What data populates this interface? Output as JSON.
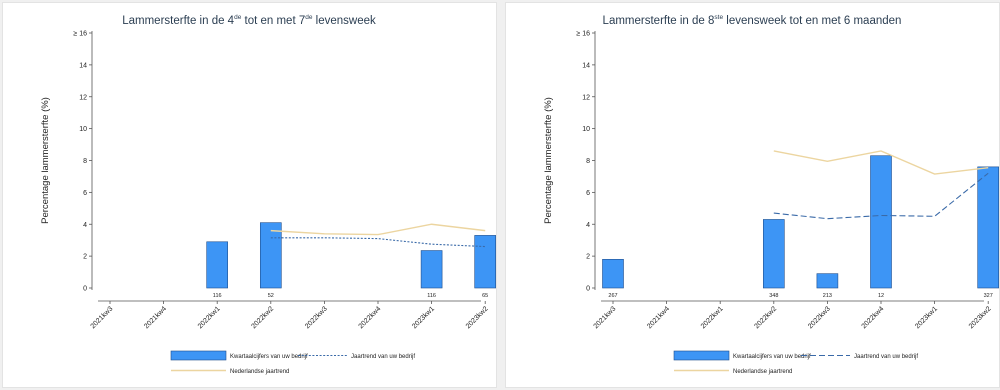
{
  "colors": {
    "bar_fill": "#3d95f5",
    "bar_stroke": "#1f4e8c",
    "farm_trend": "#3a6aa8",
    "national_trend": "#ecd5a0"
  },
  "chart_data": [
    {
      "type": "bar",
      "title_parts": [
        "Lammersterfte in de 4",
        "de",
        " tot en met 7",
        "de",
        " levensweek"
      ],
      "ylabel": "Percentage lammersterfte (%)",
      "ylim": [
        0,
        16
      ],
      "yticks": [
        "0",
        "2",
        "4",
        "6",
        "8",
        "10",
        "12",
        "14",
        "≥ 16"
      ],
      "categories": [
        "2021kw3",
        "2021kw4",
        "2022kw1",
        "2022kw2",
        "2022kw3",
        "2022kw4",
        "2023kw1",
        "2023kw2"
      ],
      "series": [
        {
          "name": "Kwartaalcijfers van uw bedrijf",
          "values": [
            null,
            null,
            2.9,
            4.1,
            null,
            null,
            2.35,
            3.3
          ],
          "n_labels": [
            "",
            "",
            "116",
            "52",
            "",
            "",
            "116",
            "65"
          ]
        },
        {
          "name": "Jaartrend van uw bedrijf",
          "style": "dotted",
          "values": [
            null,
            null,
            null,
            3.15,
            3.15,
            3.1,
            2.75,
            2.6
          ]
        },
        {
          "name": "Nederlandse jaartrend",
          "style": "solid",
          "values": [
            null,
            null,
            null,
            3.6,
            3.4,
            3.35,
            4.0,
            3.6
          ]
        }
      ],
      "legend": [
        "Kwartaalcijfers van uw bedrijf",
        "Jaartrend van uw bedrijf",
        "Nederlandse jaartrend"
      ],
      "legend_position": "bottom"
    },
    {
      "type": "bar",
      "title_parts": [
        "Lammersterfte in de 8",
        "ste",
        " levensweek tot en met 6 maanden"
      ],
      "ylabel": "Percentage lammersterfte (%)",
      "ylim": [
        0,
        16
      ],
      "yticks": [
        "0",
        "2",
        "4",
        "6",
        "8",
        "10",
        "12",
        "14",
        "≥ 16"
      ],
      "categories": [
        "2021kw3",
        "2021kw4",
        "2022kw1",
        "2022kw2",
        "2022kw3",
        "2022kw4",
        "2023kw1",
        "2023kw2"
      ],
      "series": [
        {
          "name": "Kwartaalcijfers van uw bedrijf",
          "values": [
            1.8,
            null,
            null,
            4.3,
            0.9,
            8.3,
            null,
            7.6
          ],
          "n_labels": [
            "267",
            "",
            "",
            "348",
            "213",
            "12",
            "",
            "327"
          ]
        },
        {
          "name": "Jaartrend van uw bedrijf",
          "style": "dashed",
          "values": [
            null,
            null,
            null,
            4.7,
            4.35,
            4.55,
            4.5,
            7.2
          ]
        },
        {
          "name": "Nederlandse jaartrend",
          "style": "solid",
          "values": [
            null,
            null,
            null,
            8.6,
            7.95,
            8.6,
            7.15,
            7.55
          ]
        }
      ],
      "legend": [
        "Kwartaalcijfers van uw bedrijf",
        "Jaartrend van uw bedrijf",
        "Nederlandse jaartrend"
      ],
      "legend_position": "bottom"
    }
  ]
}
